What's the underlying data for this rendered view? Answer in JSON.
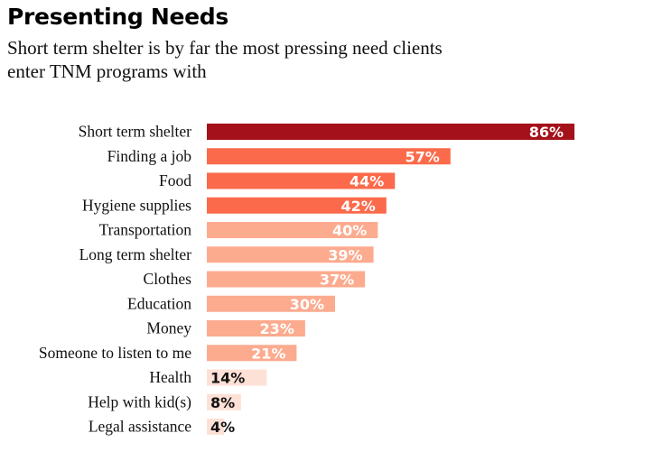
{
  "chart_data": {
    "type": "bar",
    "orientation": "horizontal",
    "title": "Presenting Needs",
    "subtitle": "Short term shelter is by far the most pressing need clients enter TNM programs with",
    "subtitle_lines": [
      "Short term shelter is by far the most pressing need clients",
      "enter TNM programs with"
    ],
    "xlabel": "",
    "ylabel": "",
    "xlim": [
      0,
      100
    ],
    "grid": false,
    "legend": "none",
    "categories": [
      "Short term shelter",
      "Finding a job",
      "Food",
      "Hygiene supplies",
      "Transportation",
      "Long term shelter",
      "Clothes",
      "Education",
      "Money",
      "Someone to listen to me",
      "Health",
      "Help with kid(s)",
      "Legal assistance"
    ],
    "values": [
      86,
      57,
      44,
      42,
      40,
      39,
      37,
      30,
      23,
      21,
      14,
      8,
      4
    ],
    "value_labels": [
      "86%",
      "57%",
      "44%",
      "42%",
      "40%",
      "39%",
      "37%",
      "30%",
      "23%",
      "21%",
      "14%",
      "8%",
      "4%"
    ],
    "bar_colors": [
      "#a5111a",
      "#fb6a4a",
      "#fb6a4a",
      "#fb6a4a",
      "#fcab8f",
      "#fcab8f",
      "#fcab8f",
      "#fcab8f",
      "#fcab8f",
      "#fcab8f",
      "#fee1d6",
      "#fee1d6",
      "#fee1d6"
    ],
    "label_colors": [
      "#ffffff",
      "#ffffff",
      "#ffffff",
      "#ffffff",
      "#ffffff",
      "#ffffff",
      "#ffffff",
      "#ffffff",
      "#ffffff",
      "#ffffff",
      "#111111",
      "#111111",
      "#111111"
    ]
  }
}
